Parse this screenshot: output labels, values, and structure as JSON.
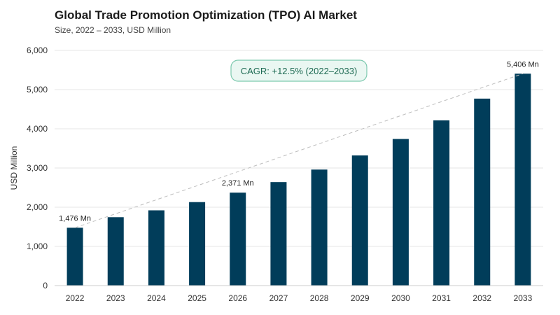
{
  "title": "Global Trade Promotion Optimization (TPO) AI Market",
  "subtitle": "Size, 2022 – 2033, USD Million",
  "colors": {
    "bar": "#013D5A",
    "grid": "#e6e6e6",
    "trend": "#bdbdbd",
    "cagr_fill": "#eaf7f2",
    "cagr_stroke": "#7cc9ae"
  },
  "chart_data": {
    "type": "bar",
    "title": "Global Trade Promotion Optimization (TPO) AI Market",
    "subtitle": "Size, 2022 – 2033, USD Million",
    "xlabel": "",
    "ylabel": "USD Million",
    "ylim": [
      0,
      6000
    ],
    "yticks": [
      0,
      1000,
      2000,
      3000,
      4000,
      5000,
      6000
    ],
    "ytick_labels": [
      "0",
      "1,000",
      "2,000",
      "3,000",
      "4,000",
      "5,000",
      "6,000"
    ],
    "categories": [
      "2022",
      "2023",
      "2024",
      "2025",
      "2026",
      "2027",
      "2028",
      "2029",
      "2030",
      "2031",
      "2032",
      "2033"
    ],
    "values": [
      1476,
      1745,
      1920,
      2130,
      2371,
      2640,
      2960,
      3320,
      3740,
      4215,
      4770,
      5406
    ],
    "data_labels": [
      {
        "index": 0,
        "text": "1,476 Mn"
      },
      {
        "index": 4,
        "text": "2,371 Mn"
      },
      {
        "index": 11,
        "text": "5,406 Mn"
      }
    ],
    "annotation": "CAGR: +12.5% (2022–2033)",
    "grid": true,
    "legend": "none"
  }
}
